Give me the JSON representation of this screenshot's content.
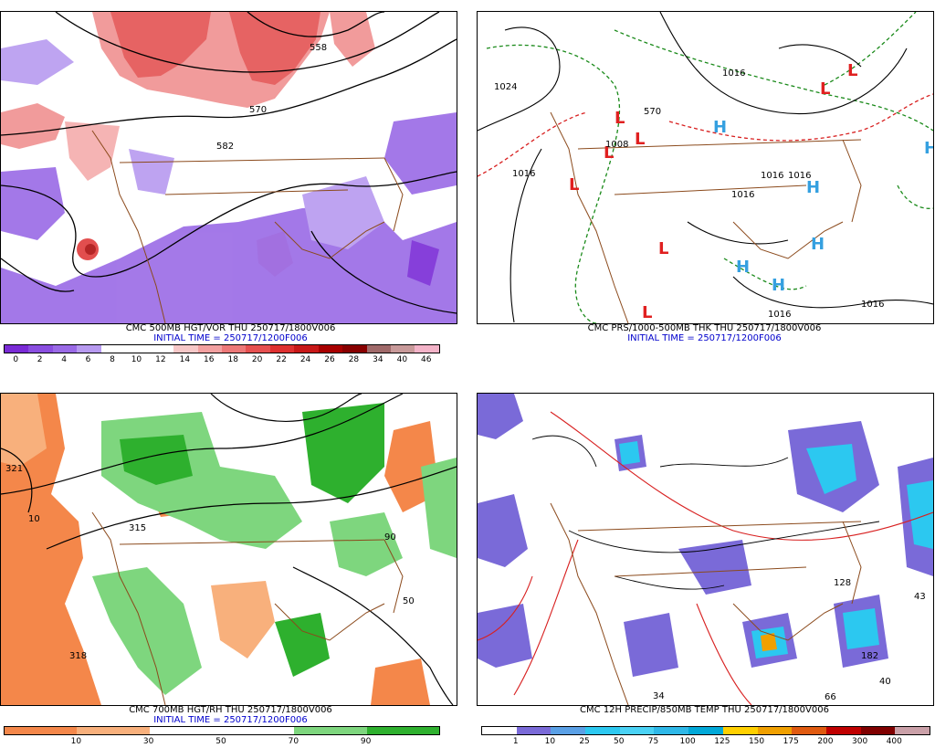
{
  "panels": [
    {
      "title": "CMC 500MB HGT/VOR THU 250717/1800V006",
      "initial_time": "INITIAL TIME = 250717/1200F006",
      "colorbar": {
        "labels": [
          "0",
          "2",
          "4",
          "6",
          "8",
          "10",
          "12",
          "14",
          "16",
          "18",
          "20",
          "22",
          "24",
          "26",
          "28",
          "34",
          "40",
          "46"
        ],
        "colors": [
          "#7a2bd6",
          "#8a4ee0",
          "#9a6ae6",
          "#b79af0",
          "#ffffff",
          "#ffffff",
          "#ffffff",
          "#f7c8c8",
          "#f2a0a0",
          "#ec7878",
          "#e65050",
          "#de3030",
          "#c81818",
          "#a80000",
          "#880000",
          "#a06a6a",
          "#c89a9a",
          "#f3b3c8"
        ]
      },
      "contour_labels": [
        "558",
        "570",
        "582"
      ]
    },
    {
      "title": "CMC PRS/1000-500MB THK THU 250717/1800V006",
      "initial_time": "INITIAL TIME = 250717/1200F006",
      "contour_labels": [
        "1024",
        "1016",
        "1008",
        "1016",
        "1016",
        "1016",
        "1016",
        "1016",
        "1016",
        "570"
      ],
      "centers": [
        "L",
        "L",
        "L",
        "L",
        "L",
        "L",
        "L",
        "L",
        "H",
        "H",
        "H",
        "H",
        "H",
        "H"
      ]
    },
    {
      "title": "CMC 700MB HGT/RH THU 250717/1800V006",
      "initial_time": "INITIAL TIME = 250717/1200F006",
      "colorbar": {
        "labels": [
          "10",
          "30",
          "50",
          "70",
          "90"
        ],
        "colors": [
          "#f4874a",
          "#f8b07c",
          "#ffffff",
          "#ffffff",
          "#7ed67e",
          "#2eb02e"
        ]
      },
      "contour_labels": [
        "321",
        "315",
        "318",
        "50",
        "90",
        "10"
      ]
    },
    {
      "title": "CMC 12H PRECIP/850MB TEMP THU 250717/1800V006",
      "initial_time": "",
      "colorbar": {
        "labels": [
          "1",
          "10",
          "25",
          "50",
          "75",
          "100",
          "125",
          "150",
          "175",
          "200",
          "300",
          "400"
        ],
        "colors": [
          "#ffffff",
          "#7a6ad8",
          "#5aa0e6",
          "#2cc8f0",
          "#4ad2f5",
          "#2eb8e8",
          "#00a8d8",
          "#ffd000",
          "#f0a000",
          "#e05a10",
          "#c00000",
          "#800000",
          "#caa0a8"
        ]
      },
      "contour_labels": [
        "43",
        "34",
        "66",
        "40",
        "128",
        "182"
      ]
    }
  ]
}
